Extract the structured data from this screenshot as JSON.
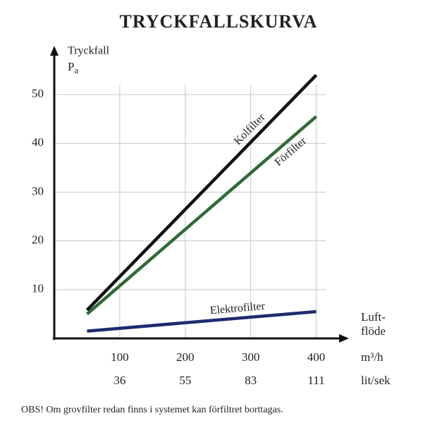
{
  "chart_data": {
    "type": "line",
    "title": "TRYCKFALLSKURVA",
    "ylabel": "Tryckfall",
    "ylabel_unit": {
      "base": "P",
      "sub": "a"
    },
    "xlabel_lines": [
      "Luft-",
      "flöde"
    ],
    "x_unit": "m³/h",
    "x_secondary_unit": "lit/sek",
    "x_secondary_labels": [
      "36",
      "55",
      "83",
      "111"
    ],
    "x": [
      50,
      400
    ],
    "series": [
      {
        "name": "Kolfilter",
        "color": "#111111",
        "values": [
          5.8,
          54
        ]
      },
      {
        "name": "Förfilter",
        "color": "#2f6b37",
        "values": [
          5,
          45.5
        ]
      },
      {
        "name": "Elektrofilter",
        "color": "#1f2a6e",
        "values": [
          1.5,
          5.5
        ]
      }
    ],
    "xlim": [
      0,
      450
    ],
    "ylim": [
      0,
      60
    ],
    "xticks": [
      100,
      200,
      300,
      400
    ],
    "yticks": [
      10,
      20,
      30,
      40,
      50
    ],
    "grid": true,
    "footnote": "OBS! Om grovfilter redan finns i systemet kan förfiltret borttagas."
  }
}
